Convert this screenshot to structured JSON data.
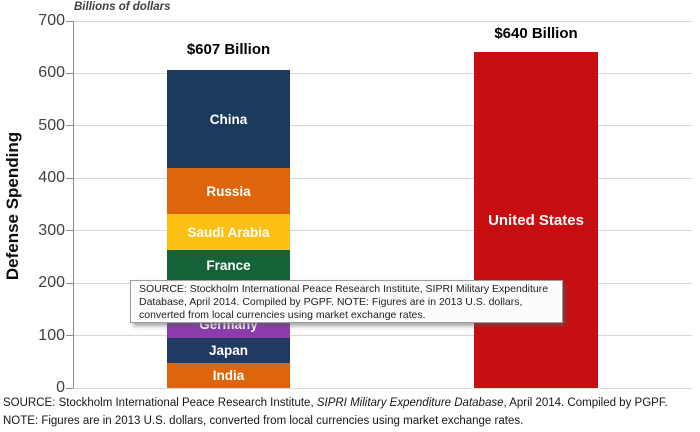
{
  "header": {
    "units_label": "Billions of dollars"
  },
  "y_axis": {
    "title": "Defense Spending",
    "ticks": [
      700,
      600,
      500,
      400,
      300,
      200,
      100,
      0
    ]
  },
  "chart_data": {
    "type": "bar",
    "ylabel": "Defense Spending",
    "units": "Billions of dollars",
    "ylim": [
      0,
      700
    ],
    "grid": true,
    "stacked_bar": {
      "total_label": "$607 Billion",
      "total": 607,
      "segments_top_to_bottom": [
        {
          "label": "China",
          "value": 188,
          "color": "#1C3A5B"
        },
        {
          "label": "Russia",
          "value": 88,
          "color": "#DE650C"
        },
        {
          "label": "Saudi Arabia",
          "value": 67,
          "color": "#FCBF13"
        },
        {
          "label": "France",
          "value": 61,
          "color": "#156238"
        },
        {
          "label": "",
          "value": 58,
          "color": "#8A8A8A",
          "obscured": true
        },
        {
          "label": "Germany",
          "value": 49,
          "color": "#8D3CAD"
        },
        {
          "label": "Japan",
          "value": 49,
          "color": "#203A63"
        },
        {
          "label": "India",
          "value": 47,
          "color": "#DD660D"
        }
      ]
    },
    "us_bar": {
      "total_label": "$640 Billion",
      "label": "United States",
      "value": 640,
      "color": "#C80D11"
    }
  },
  "tooltip": {
    "lines": [
      "SOURCE: Stockholm International Peace Research Institute, SIPRI Military Expenditure",
      "Database, April 2014. Compiled by PGPF. NOTE: Figures are in 2013 U.S. dollars,",
      "converted from local currencies using market exchange rates."
    ]
  },
  "footer": {
    "line1_prefix": "SOURCE: Stockholm International Peace Research Institute, ",
    "line1_italic": "SIPRI Military Expenditure Database",
    "line1_suffix": ", April 2014. Compiled by PGPF.",
    "line2": "NOTE: Figures are in 2013 U.S. dollars, converted from local currencies using market exchange rates."
  }
}
